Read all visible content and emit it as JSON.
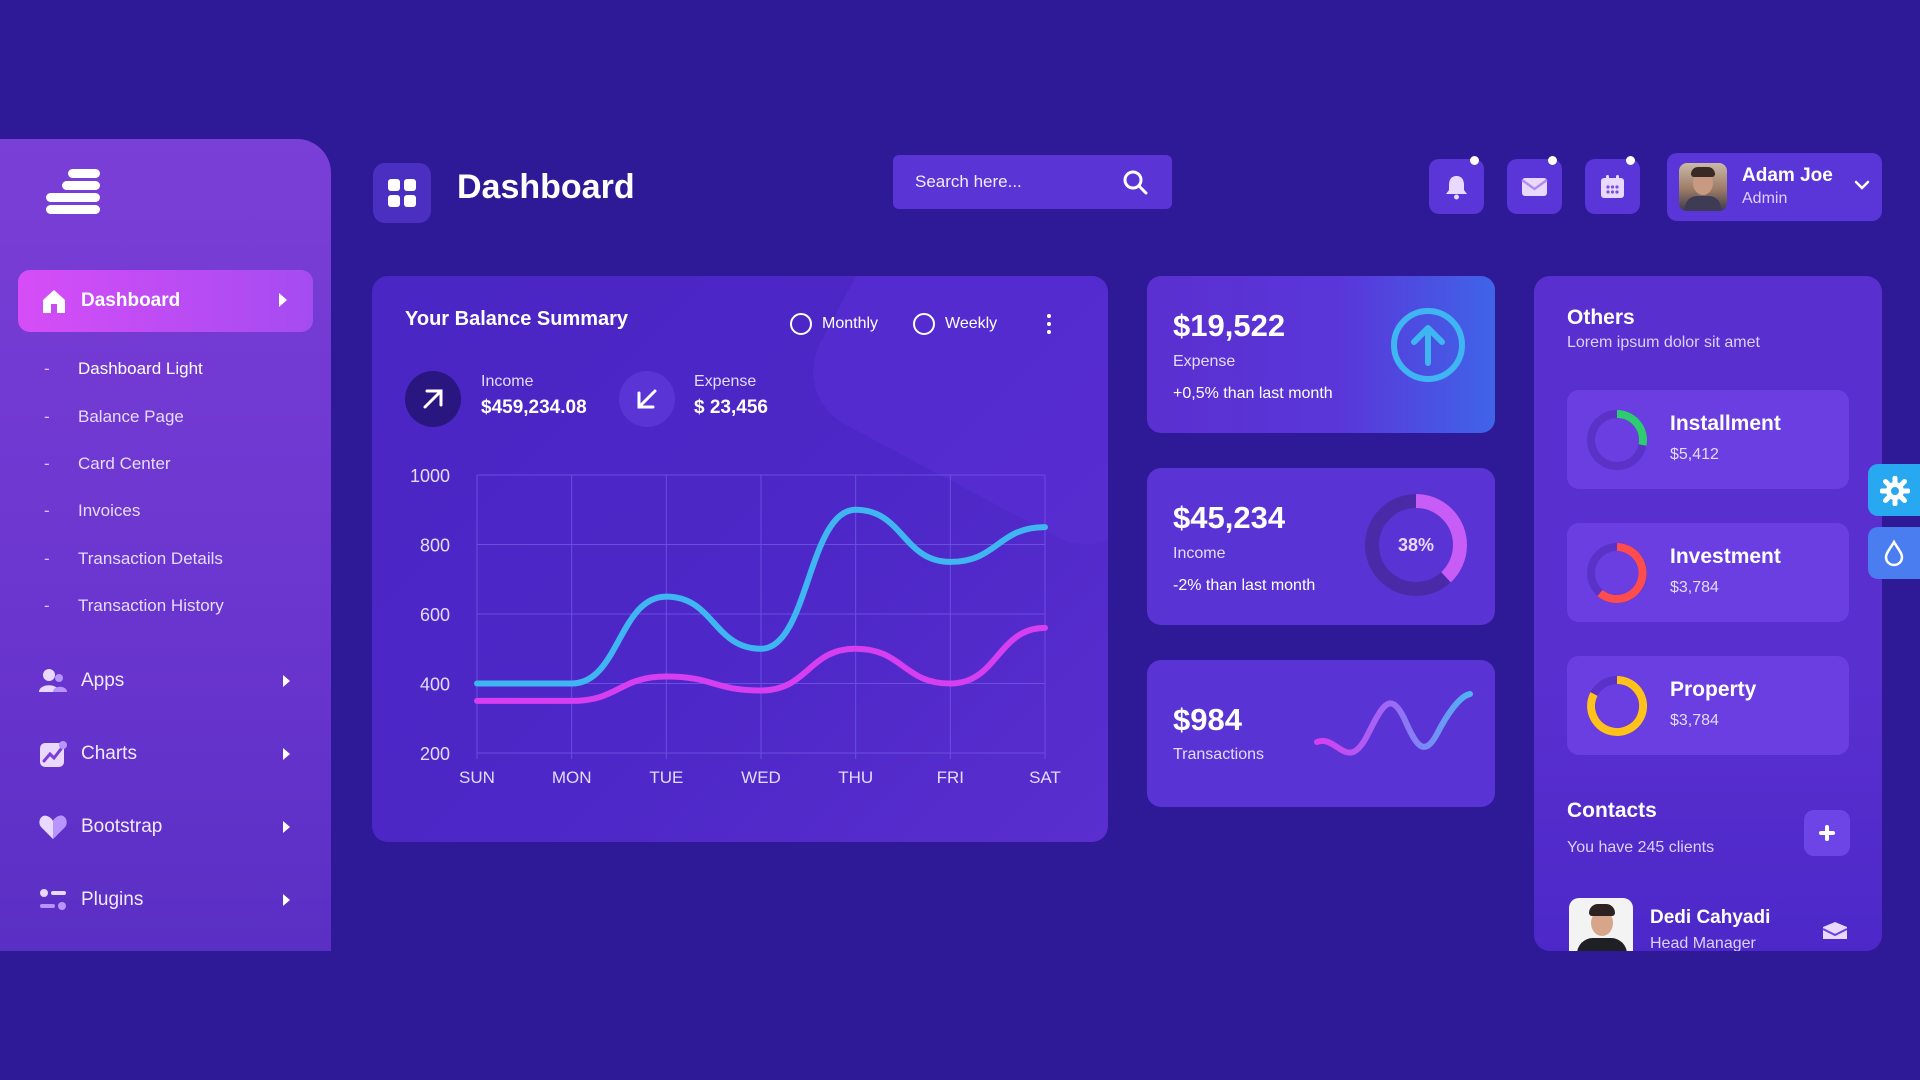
{
  "colors": {
    "background": "#2e1a96",
    "accent_pink": "#d64df7",
    "accent_blue": "#3fb6f2",
    "line_pink": "#d53ff0"
  },
  "sidebar": {
    "logo_icon": "brand-logo-icon",
    "active": {
      "label": "Dashboard",
      "icon": "home-icon"
    },
    "sub_items": [
      "Dashboard Light",
      "Balance Page",
      "Card Center",
      "Invoices",
      "Transaction Details",
      "Transaction History"
    ],
    "items": [
      {
        "label": "Apps",
        "icon": "users-icon"
      },
      {
        "label": "Charts",
        "icon": "chart-icon"
      },
      {
        "label": "Bootstrap",
        "icon": "heart-icon"
      },
      {
        "label": "Plugins",
        "icon": "sliders-icon"
      }
    ]
  },
  "header": {
    "title": "Dashboard",
    "search_placeholder": "Search here...",
    "user": {
      "name": "Adam Joe",
      "role": "Admin"
    }
  },
  "balance": {
    "title": "Your Balance Summary",
    "toggle": [
      "Monthly",
      "Weekly"
    ],
    "income_label": "Income",
    "income_value": "$459,234.08",
    "expense_label": "Expense",
    "expense_value": "$ 23,456"
  },
  "chart_data": {
    "type": "line",
    "categories": [
      "SUN",
      "MON",
      "TUE",
      "WED",
      "THU",
      "FRI",
      "SAT"
    ],
    "ylim": [
      200,
      1000
    ],
    "yticks": [
      1000,
      800,
      600,
      400,
      200
    ],
    "series": [
      {
        "color": "#3fb6f2",
        "values": [
          400,
          400,
          650,
          500,
          900,
          750,
          850
        ]
      },
      {
        "color": "#d53ff0",
        "values": [
          350,
          350,
          420,
          380,
          500,
          400,
          560
        ]
      }
    ],
    "grid": true
  },
  "stats": [
    {
      "value": "$19,522",
      "label": "Expense",
      "note": "+0,5% than last month",
      "icon": "arrow-up-circle-icon"
    },
    {
      "value": "$45,234",
      "label": "Income",
      "note": "-2% than last month",
      "percent": "38%",
      "progress": 0.38
    },
    {
      "value": "$984",
      "label": "Transactions"
    }
  ],
  "others": {
    "title": "Others",
    "subtitle": "Lorem ipsum dolor sit amet",
    "items": [
      {
        "name": "Installment",
        "amount": "$5,412",
        "color": "#2ecc71"
      },
      {
        "name": "Investment",
        "amount": "$3,784",
        "color": "#ff4d4d"
      },
      {
        "name": "Property",
        "amount": "$3,784",
        "color": "#ffc21a"
      }
    ]
  },
  "contacts": {
    "title": "Contacts",
    "subtitle": "You have 245 clients",
    "people": [
      {
        "name": "Dedi Cahyadi",
        "role": "Head Manager"
      }
    ]
  }
}
